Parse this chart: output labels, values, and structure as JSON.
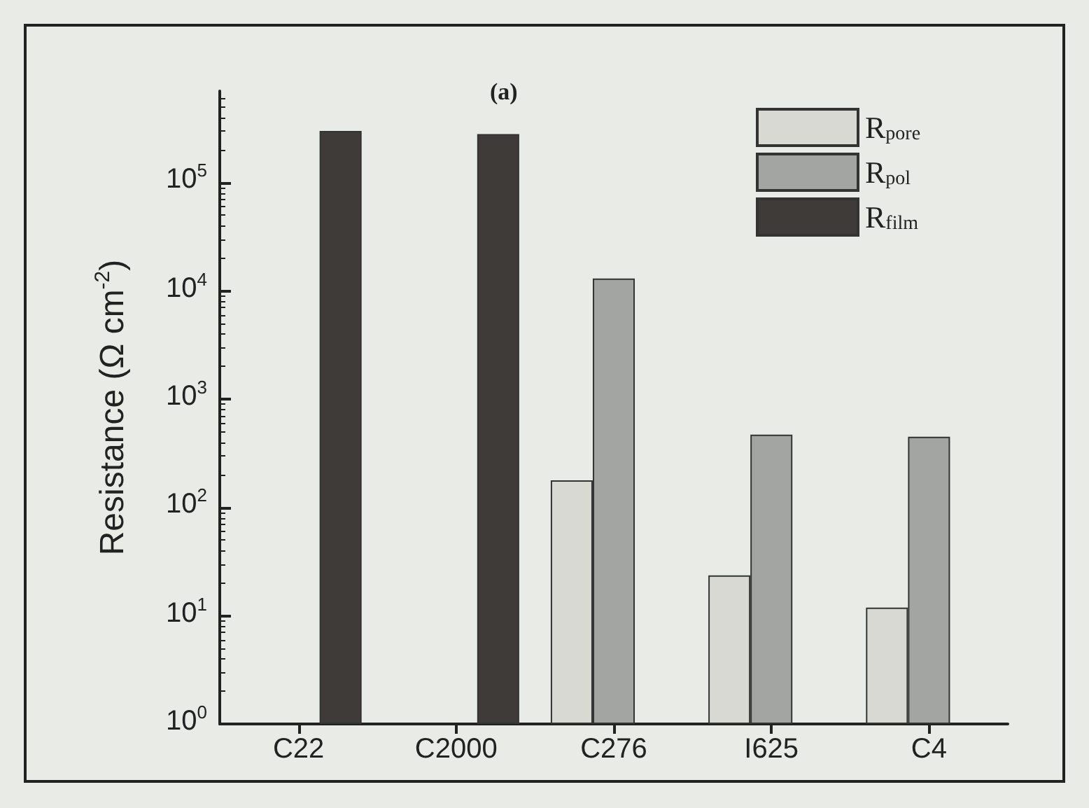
{
  "chart_data": {
    "type": "bar",
    "title": "(a)",
    "ylabel": "Resistance (Ω cm$^{-2}$)",
    "categories": [
      "C22",
      "C2000",
      "C276",
      "I625",
      "C4"
    ],
    "series": [
      {
        "name": "R$_{pore}$",
        "color": "#d9d9d4",
        "values": [
          null,
          null,
          178,
          23.6,
          11.9
        ]
      },
      {
        "name": "R$_{pol}$",
        "color": "#a3a5a2",
        "values": [
          null,
          null,
          13000,
          470,
          450
        ]
      },
      {
        "name": "R$_{film}$",
        "color": "#3e3b38",
        "values": [
          300000,
          280000,
          null,
          null,
          null
        ]
      }
    ],
    "log": "y",
    "ylim": [
      1,
      700000
    ],
    "yticks": [
      {
        "value": 1,
        "label": "10$^{0}$"
      },
      {
        "value": 10,
        "label": "10$^{1}$"
      },
      {
        "value": 100,
        "label": "10$^{2}$"
      },
      {
        "value": 1000,
        "label": "10$^{3}$"
      },
      {
        "value": 10000,
        "label": "10$^{4}$"
      },
      {
        "value": 100000,
        "label": "10$^{5}$"
      }
    ],
    "grid": false,
    "legend": "top right"
  }
}
